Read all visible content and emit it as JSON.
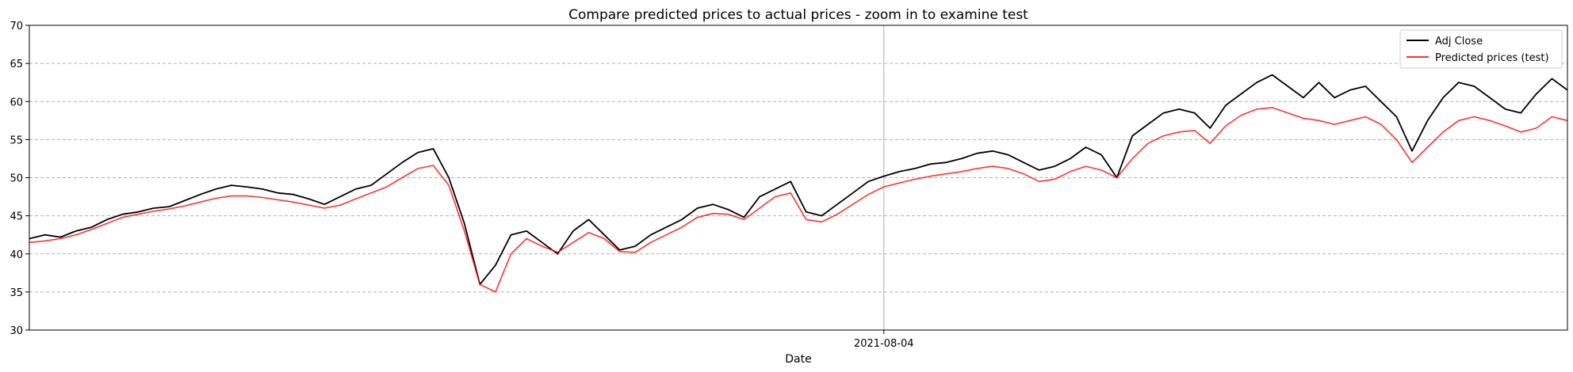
{
  "chart_data": {
    "type": "line",
    "title": "Compare predicted prices to actual prices - zoom in to examine test",
    "xlabel": "Date",
    "ylabel": "",
    "x_ticks": [
      "2021-08-04"
    ],
    "ylim": [
      30,
      70
    ],
    "y_ticks": [
      30,
      35,
      40,
      45,
      50,
      55,
      60,
      65,
      70
    ],
    "grid": "horizontal dashed",
    "legend_position": "top-right",
    "x_range_index": [
      0,
      99
    ],
    "marker_index": 55,
    "series": [
      {
        "name": "Adj Close",
        "color": "#000000",
        "values": [
          42.0,
          42.5,
          42.2,
          43.0,
          43.5,
          44.5,
          45.2,
          45.5,
          46.0,
          46.2,
          47.0,
          47.8,
          48.5,
          49.0,
          48.8,
          48.5,
          48.0,
          47.8,
          47.2,
          46.5,
          47.5,
          48.5,
          49.0,
          50.5,
          52.0,
          53.3,
          53.8,
          50.0,
          44.0,
          36.0,
          38.5,
          42.5,
          43.0,
          41.5,
          40.0,
          43.0,
          44.5,
          42.5,
          40.5,
          41.0,
          42.5,
          43.5,
          44.5,
          46.0,
          46.5,
          45.8,
          44.8,
          47.5,
          48.5,
          49.5,
          45.5,
          45.0,
          46.5,
          48.0,
          49.5,
          50.2,
          50.8,
          51.2,
          51.8,
          52.0,
          52.5,
          53.2,
          53.5,
          53.0,
          52.0,
          51.0,
          51.5,
          52.5,
          54.0,
          53.0,
          50.0,
          55.5,
          57.0,
          58.5,
          59.0,
          58.5,
          56.5,
          59.5,
          61.0,
          62.5,
          63.5,
          62.0,
          60.5,
          62.5,
          60.5,
          61.5,
          62.0,
          60.0,
          58.0,
          53.5,
          57.5,
          60.5,
          62.5,
          62.0,
          60.5,
          59.0,
          58.5,
          61.0,
          63.0,
          61.5
        ]
      },
      {
        "name": "Predicted prices (test)",
        "color": "#ff0000",
        "values": [
          41.5,
          41.7,
          42.0,
          42.5,
          43.2,
          44.0,
          44.8,
          45.2,
          45.6,
          45.9,
          46.3,
          46.8,
          47.3,
          47.6,
          47.6,
          47.4,
          47.1,
          46.8,
          46.4,
          46.0,
          46.4,
          47.2,
          48.0,
          48.8,
          50.0,
          51.2,
          51.6,
          49.0,
          43.0,
          36.0,
          35.0,
          40.0,
          42.0,
          41.0,
          40.2,
          41.5,
          42.8,
          42.0,
          40.3,
          40.2,
          41.5,
          42.5,
          43.5,
          44.8,
          45.3,
          45.2,
          44.5,
          46.0,
          47.5,
          48.0,
          44.5,
          44.2,
          45.2,
          46.5,
          47.8,
          48.8,
          49.3,
          49.8,
          50.2,
          50.5,
          50.8,
          51.2,
          51.5,
          51.2,
          50.5,
          49.5,
          49.8,
          50.8,
          51.5,
          51.0,
          50.0,
          52.5,
          54.5,
          55.5,
          56.0,
          56.2,
          54.5,
          56.8,
          58.2,
          59.0,
          59.2,
          58.5,
          57.8,
          57.5,
          57.0,
          57.5,
          58.0,
          57.0,
          55.0,
          52.0,
          54.0,
          56.0,
          57.5,
          58.0,
          57.5,
          56.8,
          56.0,
          56.5,
          58.0,
          57.5
        ]
      }
    ]
  }
}
